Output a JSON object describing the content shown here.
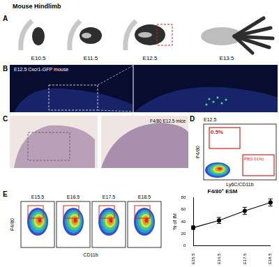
{
  "panel_labels": [
    "A",
    "B",
    "C",
    "D",
    "E"
  ],
  "panel_a": {
    "title": "Mouse Hindlimb",
    "stages": [
      "E10.5",
      "E11.5",
      "E12.5",
      "E13.5"
    ]
  },
  "panel_b": {
    "caption": "E12.5 Cxcr1-GFP mouse"
  },
  "panel_c": {
    "caption": "F4/80 E12.5 mice"
  },
  "panel_d": {
    "title": "E12.5",
    "y_label": "F4/80",
    "x_label": "Ly6C/CD11b",
    "gates": [
      "0.5%",
      "P8(0.01%)"
    ]
  },
  "panel_e": {
    "stages": [
      "E15.5",
      "E16.5",
      "E17.5",
      "E18.5"
    ],
    "y_label": "F4/80",
    "x_label": "CD11b"
  },
  "chart_data": {
    "type": "line",
    "title": "F4/80⁺ ESM",
    "y_label": "% of IM",
    "categories": [
      "E15.5",
      "E16.5",
      "E17.5",
      "E18.5"
    ],
    "values": [
      30,
      42,
      58,
      72
    ],
    "errors": [
      3,
      5,
      6,
      6
    ],
    "color": "#000000",
    "marker": "circle",
    "ylim": [
      0,
      80
    ],
    "yticks": [
      0,
      20,
      40,
      60,
      80
    ],
    "grid": false
  }
}
